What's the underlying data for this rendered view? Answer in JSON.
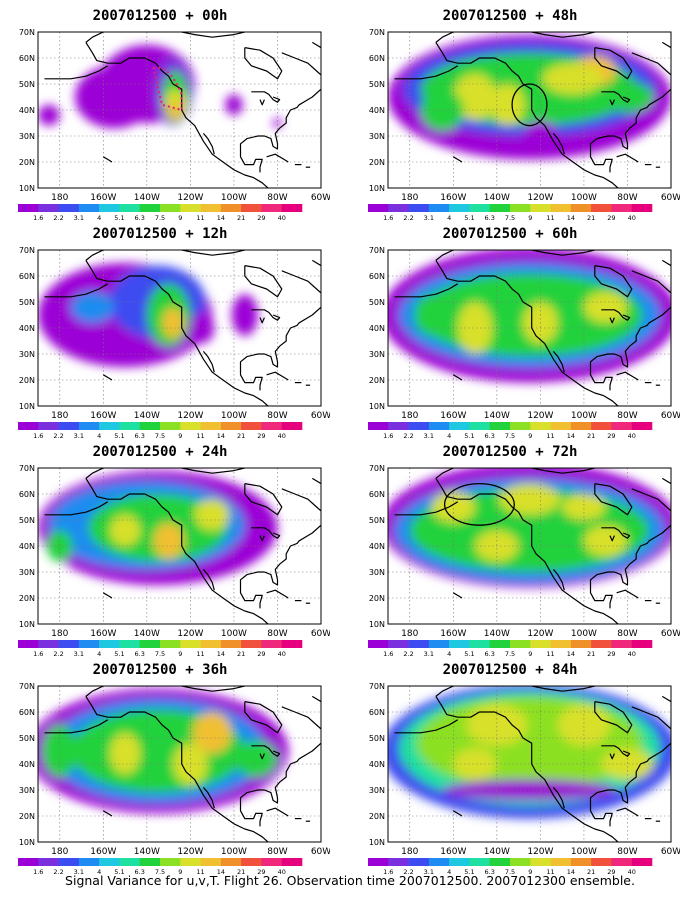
{
  "figure": {
    "caption": "Signal Variance for u,v,T. Flight 26. Observation time 2007012500. 2007012300 ensemble.",
    "lat_labels": [
      "70N",
      "60N",
      "50N",
      "40N",
      "30N",
      "20N",
      "10N"
    ],
    "lon_labels": [
      "180",
      "160W",
      "140W",
      "120W",
      "100W",
      "80W",
      "60W"
    ],
    "colorbar": {
      "labels": [
        "1.6",
        "2.2",
        "3.1",
        "4",
        "5.1",
        "6.3",
        "7.5",
        "9",
        "11",
        "14",
        "21",
        "29",
        "40"
      ],
      "colors": [
        "#9b00d6",
        "#7b30e0",
        "#3c4cf0",
        "#1e8cf0",
        "#1ec8e0",
        "#1ee0a0",
        "#22d23c",
        "#8ce024",
        "#d8e02c",
        "#f0c030",
        "#f09028",
        "#f0503c",
        "#f0287c",
        "#e6007e"
      ]
    },
    "panels": [
      {
        "id": "p00",
        "title": "2007012500 + 00h"
      },
      {
        "id": "p48",
        "title": "2007012500 + 48h"
      },
      {
        "id": "p12",
        "title": "2007012500 + 12h"
      },
      {
        "id": "p60",
        "title": "2007012500 + 60h"
      },
      {
        "id": "p24",
        "title": "2007012500 + 24h"
      },
      {
        "id": "p72",
        "title": "2007012500 + 72h"
      },
      {
        "id": "p36",
        "title": "2007012500 + 36h"
      },
      {
        "id": "p84",
        "title": "2007012500 + 84h"
      }
    ]
  }
}
